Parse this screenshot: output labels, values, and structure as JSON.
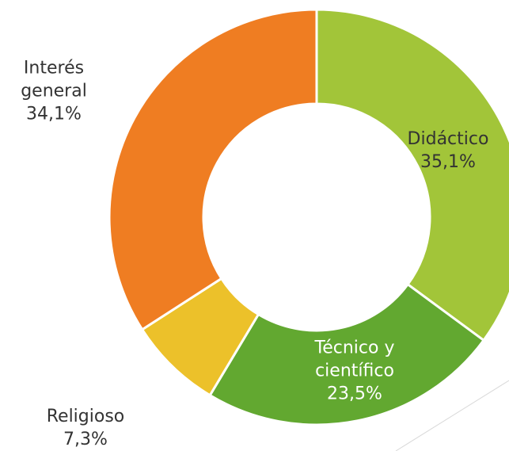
{
  "chart_data": {
    "type": "donut",
    "categories": [
      "Didáctico",
      "Técnico y científico",
      "Religioso",
      "Interés general"
    ],
    "values": [
      35.1,
      23.5,
      7.3,
      34.1
    ],
    "value_labels": [
      "35,1%",
      "23,5%",
      "7,3%",
      "34,1%"
    ],
    "colors": [
      "#a2c539",
      "#62a830",
      "#ecc12a",
      "#ef7d22"
    ]
  }
}
